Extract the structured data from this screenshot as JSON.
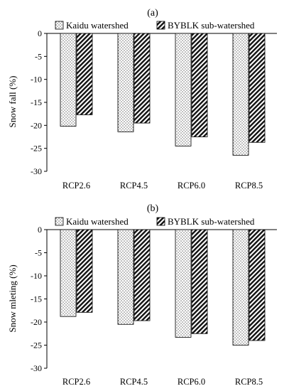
{
  "chart_data": [
    {
      "type": "bar",
      "panel_label": "(a)",
      "ylabel": "Snow fall  (%)",
      "categories": [
        "RCP2.6",
        "RCP4.5",
        "RCP6.0",
        "RCP8.5"
      ],
      "series": [
        {
          "name": "Kaidu watershed",
          "pattern": "dots",
          "values": [
            -20.2,
            -21.4,
            -24.5,
            -26.5
          ]
        },
        {
          "name": "BYBLK sub-watershed",
          "pattern": "hatch",
          "values": [
            -17.7,
            -19.5,
            -22.5,
            -23.7
          ]
        }
      ],
      "ylim": [
        -30,
        0
      ],
      "yticks": [
        "0",
        "-5",
        "-10",
        "-15",
        "-20",
        "-25",
        "-30"
      ],
      "ytick_values": [
        0,
        -5,
        -10,
        -15,
        -20,
        -25,
        -30
      ],
      "grid": false,
      "legend": "top"
    },
    {
      "type": "bar",
      "panel_label": "(b)",
      "ylabel": "Snow mleting  (%)",
      "categories": [
        "RCP2.6",
        "RCP4.5",
        "RCP6.0",
        "RCP8.5"
      ],
      "series": [
        {
          "name": "Kaidu watershed",
          "pattern": "dots",
          "values": [
            -18.8,
            -20.5,
            -23.3,
            -25.0
          ]
        },
        {
          "name": "BYBLK sub-watershed",
          "pattern": "hatch",
          "values": [
            -17.9,
            -19.7,
            -22.5,
            -24.0
          ]
        }
      ],
      "ylim": [
        -30,
        0
      ],
      "yticks": [
        "0",
        "-5",
        "-10",
        "-15",
        "-20",
        "-25",
        "-30"
      ],
      "ytick_values": [
        0,
        -5,
        -10,
        -15,
        -20,
        -25,
        -30
      ],
      "grid": false,
      "legend": "top"
    }
  ]
}
